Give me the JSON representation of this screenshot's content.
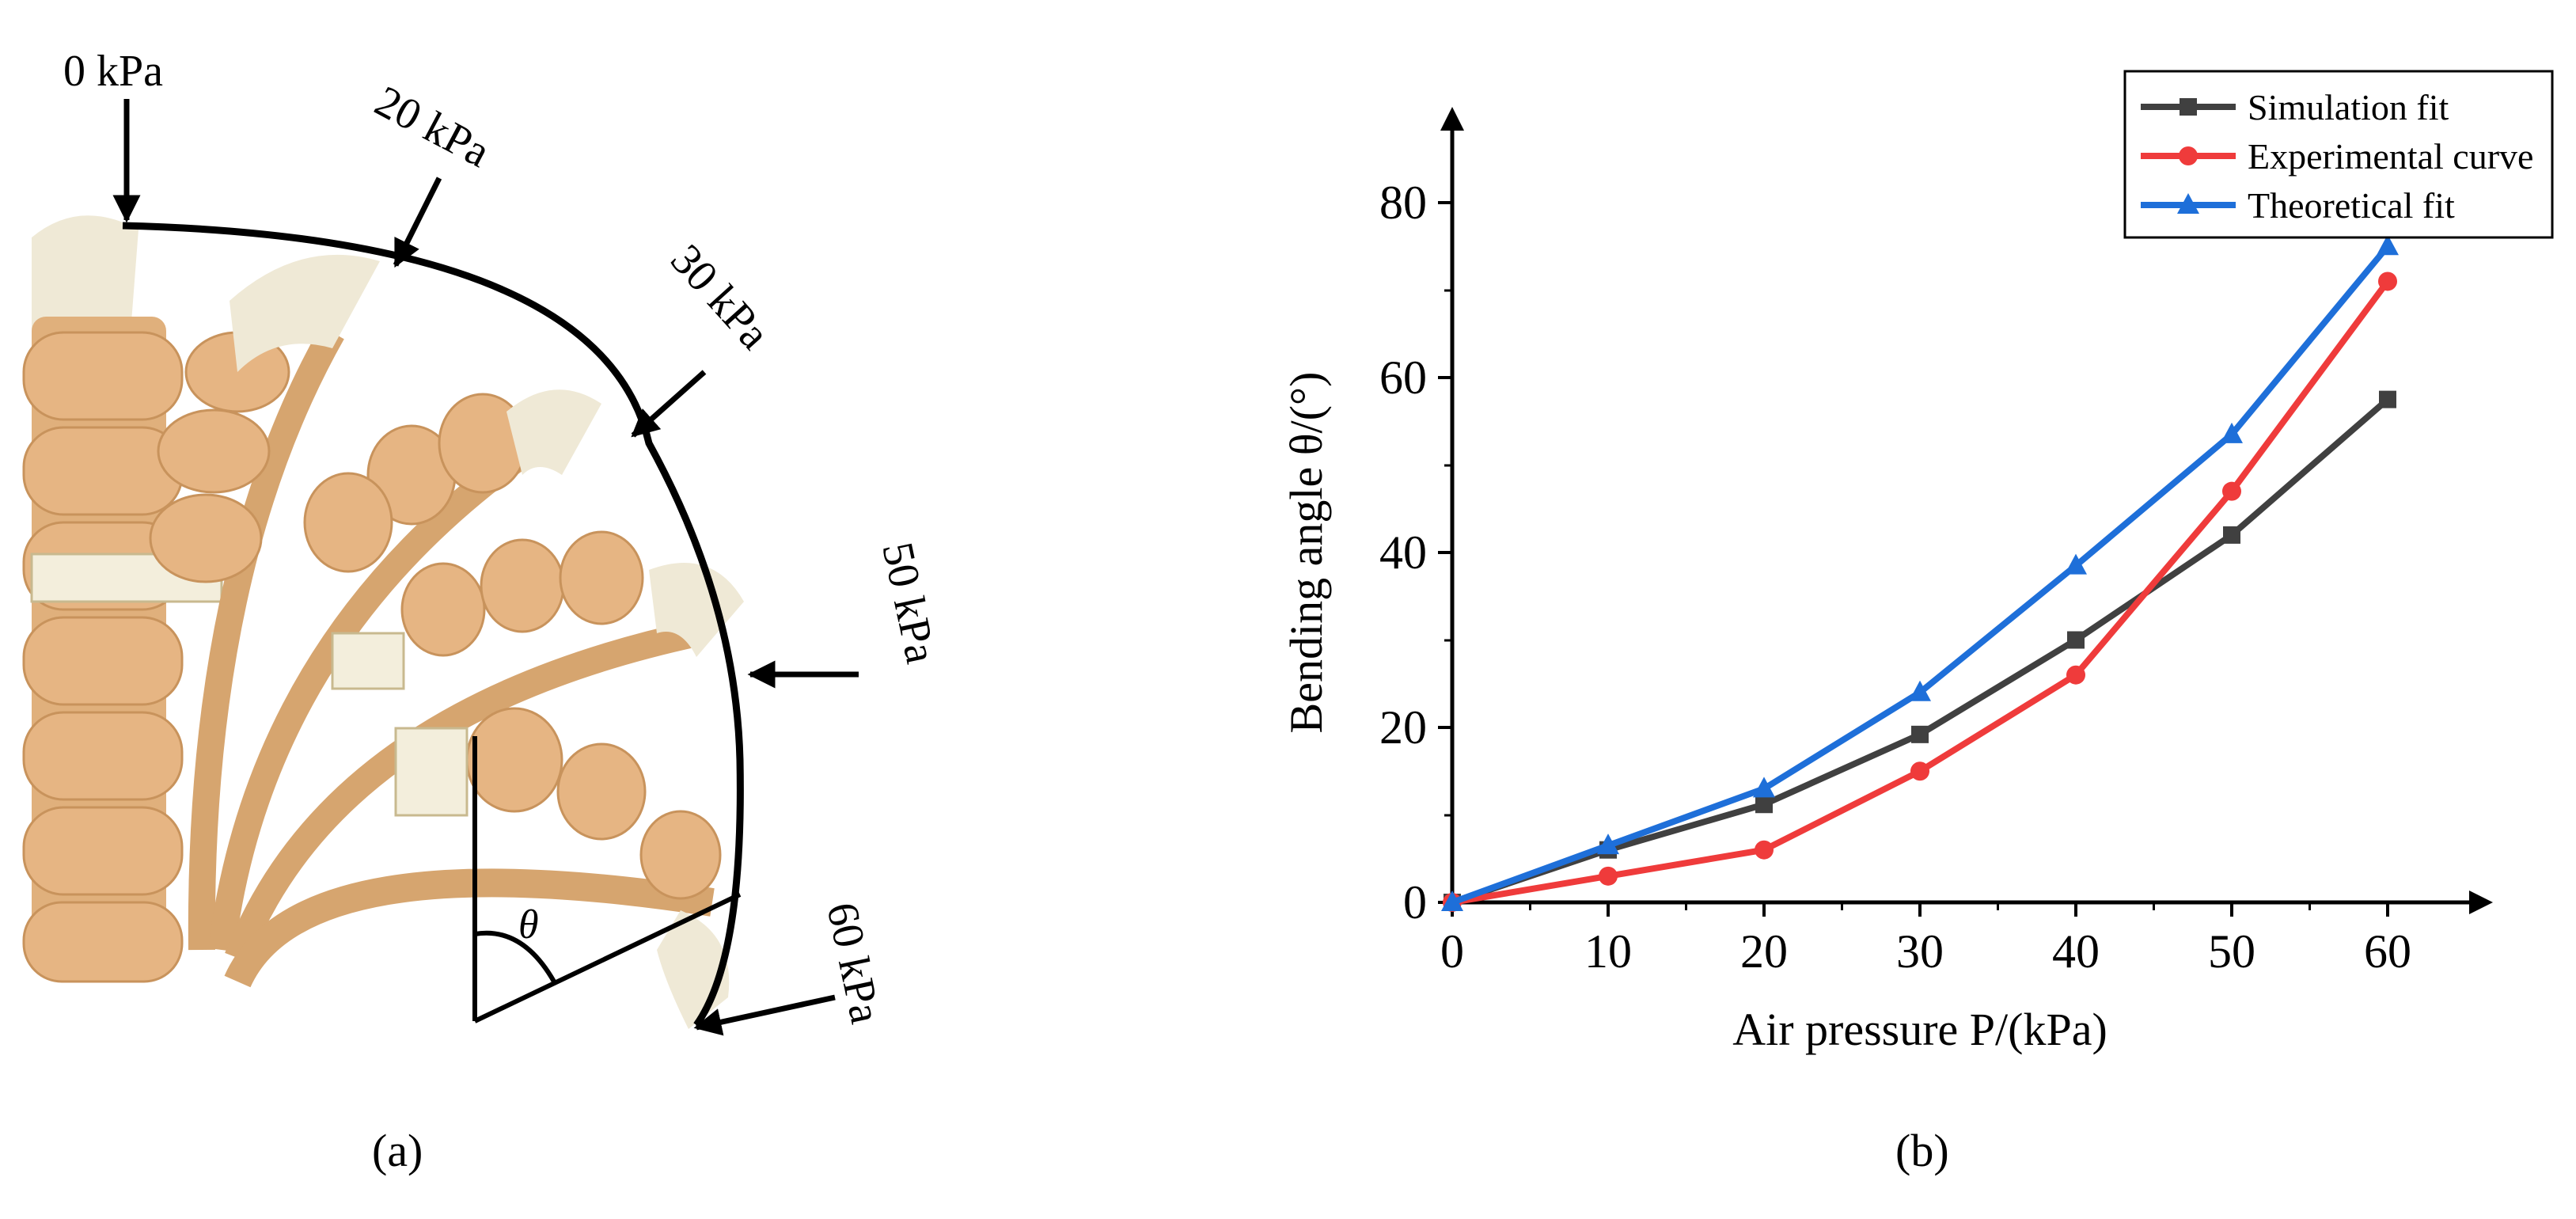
{
  "panel_a": {
    "caption": "(a)",
    "pressure_labels": [
      "0  kPa",
      "20  kPa",
      "30  kPa",
      "50  kPa",
      "60  kPa"
    ],
    "angle_symbol": "θ",
    "colors": {
      "silicone": "#e0b07c",
      "silicone_dark": "#c8935c",
      "cap": "#efe9d6",
      "outline": "#000000"
    }
  },
  "panel_b": {
    "caption": "(b)"
  },
  "chart_data": {
    "type": "line",
    "title": "",
    "xlabel": "Air pressure P/(kPa)",
    "ylabel": "Bending angle θ/(°)",
    "x": [
      0,
      10,
      20,
      30,
      40,
      50,
      60
    ],
    "xticks": [
      0,
      10,
      20,
      30,
      40,
      50,
      60
    ],
    "yticks": [
      0,
      20,
      40,
      60,
      80
    ],
    "xlim": [
      0,
      64
    ],
    "ylim": [
      0,
      88
    ],
    "legend_position": "top-right",
    "series": [
      {
        "name": "Simulation fit",
        "color": "#404040",
        "marker": "square",
        "values": [
          0,
          6,
          11.2,
          19.2,
          30,
          42,
          57.5
        ]
      },
      {
        "name": "Experimental curve",
        "color": "#ef3b3b",
        "marker": "circle",
        "values": [
          0,
          3,
          6,
          15,
          26,
          47,
          71
        ]
      },
      {
        "name": "Theoretical fit",
        "color": "#1e6fd9",
        "marker": "triangle",
        "values": [
          0,
          6.5,
          13,
          24,
          38.5,
          53.5,
          75
        ]
      }
    ]
  }
}
